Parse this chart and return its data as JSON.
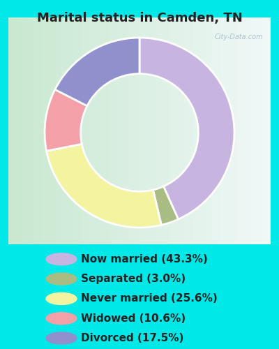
{
  "title": "Marital status in Camden, TN",
  "slices": [
    {
      "label": "Now married (43.3%)",
      "value": 43.3,
      "color": "#c8b4e0"
    },
    {
      "label": "Separated (3.0%)",
      "value": 3.0,
      "color": "#a8bc84"
    },
    {
      "label": "Never married (25.6%)",
      "value": 25.6,
      "color": "#f4f4a0"
    },
    {
      "label": "Widowed (10.6%)",
      "value": 10.6,
      "color": "#f4a0a8"
    },
    {
      "label": "Divorced (17.5%)",
      "value": 17.5,
      "color": "#9090cc"
    }
  ],
  "background_cyan": "#00e8e8",
  "background_chart_left": "#c8e8d0",
  "background_chart_right": "#e8f0f4",
  "watermark": "City-Data.com",
  "title_fontsize": 13,
  "legend_fontsize": 11,
  "donut_width": 0.38,
  "start_angle": 90
}
